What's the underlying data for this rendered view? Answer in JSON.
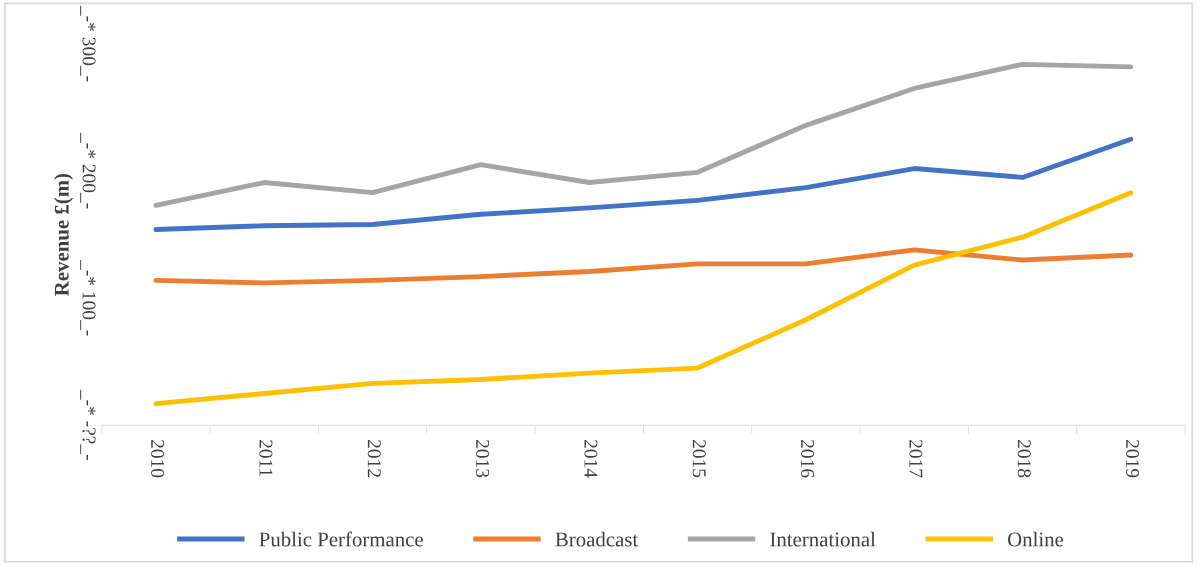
{
  "chart_data": {
    "type": "line",
    "ylabel": "Revenue £(m)",
    "categories": [
      "2010",
      "2011",
      "2012",
      "2013",
      "2014",
      "2015",
      "2016",
      "2017",
      "2018",
      "2019"
    ],
    "series": [
      {
        "name": "Public Performance",
        "color": "#4472c4",
        "values": [
          154,
          157,
          158,
          166,
          171,
          177,
          187,
          202,
          195,
          225
        ]
      },
      {
        "name": "Broadcast",
        "color": "#ed7d31",
        "values": [
          114,
          112,
          114,
          117,
          121,
          127,
          127,
          138,
          130,
          134
        ]
      },
      {
        "name": "International",
        "color": "#a5a5a5",
        "values": [
          173,
          191,
          183,
          205,
          191,
          199,
          236,
          265,
          284,
          282
        ]
      },
      {
        "name": "Online",
        "color": "#ffc000",
        "values": [
          17,
          25,
          33,
          36,
          41,
          45,
          83,
          126,
          148,
          183
        ]
      }
    ],
    "ylim": [
      0,
      300
    ],
    "yticks": [
      {
        "value": 0,
        "label": "_-* -??_-"
      },
      {
        "value": 100,
        "label": "_-* 100_-"
      },
      {
        "value": 200,
        "label": "_-* 200_-"
      },
      {
        "value": 300,
        "label": "_-* 300_-"
      }
    ],
    "grid": false,
    "legend": "bottom",
    "marker": "none",
    "line_style": "solid"
  }
}
